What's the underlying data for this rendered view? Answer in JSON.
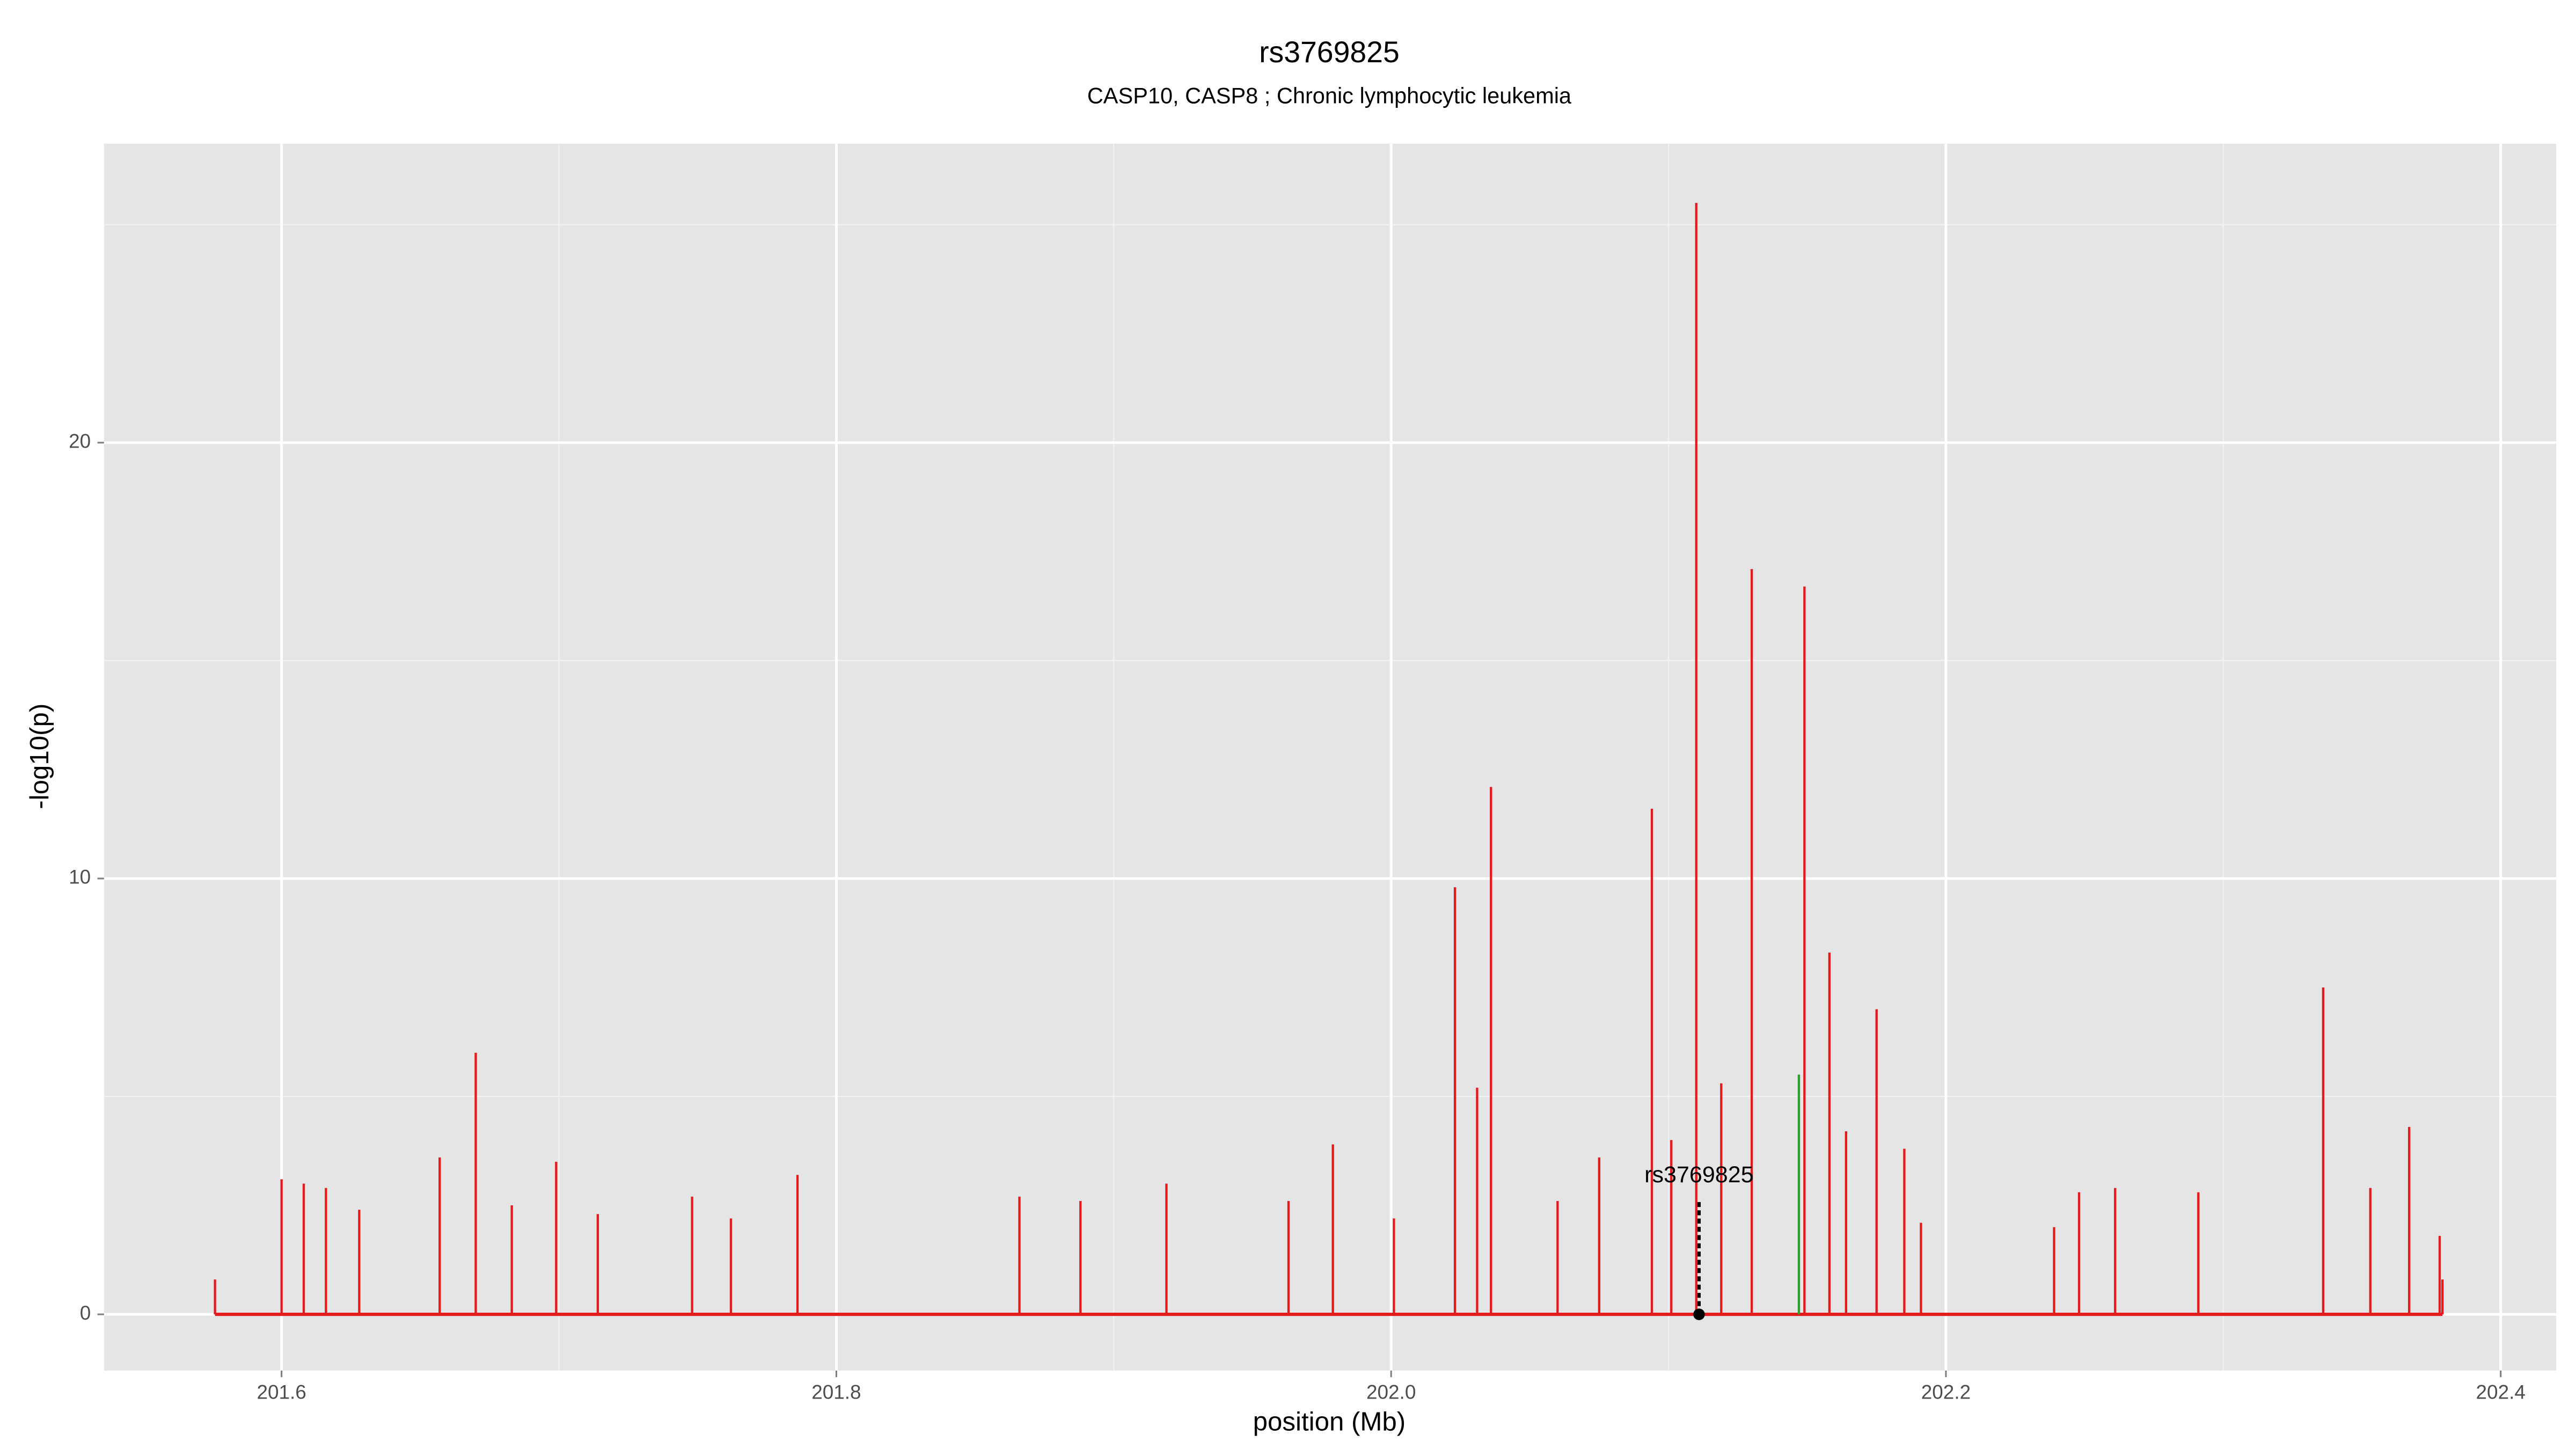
{
  "chart_data": {
    "type": "spike",
    "title": "rs3769825",
    "subtitle": "CASP10, CASP8 ; Chronic lymphocytic leukemia",
    "xlabel": "position (Mb)",
    "ylabel": "-log10(p)",
    "xlim": [
      201.536,
      202.42
    ],
    "ylim": [
      -1.29,
      26.86
    ],
    "xticks": [
      201.6,
      201.8,
      {
        "value": 202,
        "label": "202.0"
      },
      202.2,
      202.4
    ],
    "xminorticks": [
      201.7,
      201.9,
      202.1,
      202.3
    ],
    "yticks": [
      0,
      10,
      20
    ],
    "yminorticks": [
      5,
      15,
      25
    ],
    "grid": true,
    "series": [
      {
        "color": "#e41a1c",
        "x": [
          201.576,
          201.6,
          201.608,
          201.616,
          201.628,
          201.657,
          201.67,
          201.683,
          201.699,
          201.714,
          201.748,
          201.762,
          201.786,
          201.866,
          201.888,
          201.919,
          201.963,
          201.979,
          202.001,
          202.023,
          202.031,
          202.036,
          202.06,
          202.075,
          202.094,
          202.101,
          202.11,
          202.119,
          202.13,
          202.149,
          202.158,
          202.164,
          202.175,
          202.185,
          202.191,
          202.239,
          202.248,
          202.261,
          202.291,
          202.336,
          202.353,
          202.367,
          202.378,
          202.379
        ],
        "values": [
          0.8,
          3.1,
          3.0,
          2.9,
          2.4,
          3.6,
          6.0,
          2.5,
          3.5,
          2.3,
          2.7,
          2.2,
          3.2,
          2.7,
          2.6,
          3.0,
          2.6,
          3.9,
          2.2,
          9.8,
          5.2,
          12.1,
          2.6,
          3.6,
          11.6,
          4.0,
          25.5,
          5.3,
          17.1,
          16.7,
          8.3,
          4.2,
          7.0,
          3.8,
          2.1,
          2.0,
          2.8,
          2.9,
          2.8,
          7.5,
          2.9,
          4.3,
          1.8,
          0.8
        ]
      },
      {
        "color": "#2ca02c",
        "x": [
          202.147
        ],
        "values": [
          5.5
        ]
      }
    ],
    "annotation": {
      "text": "rs3769825",
      "x": 202.111,
      "y": 0,
      "line_top": 2.6
    }
  }
}
